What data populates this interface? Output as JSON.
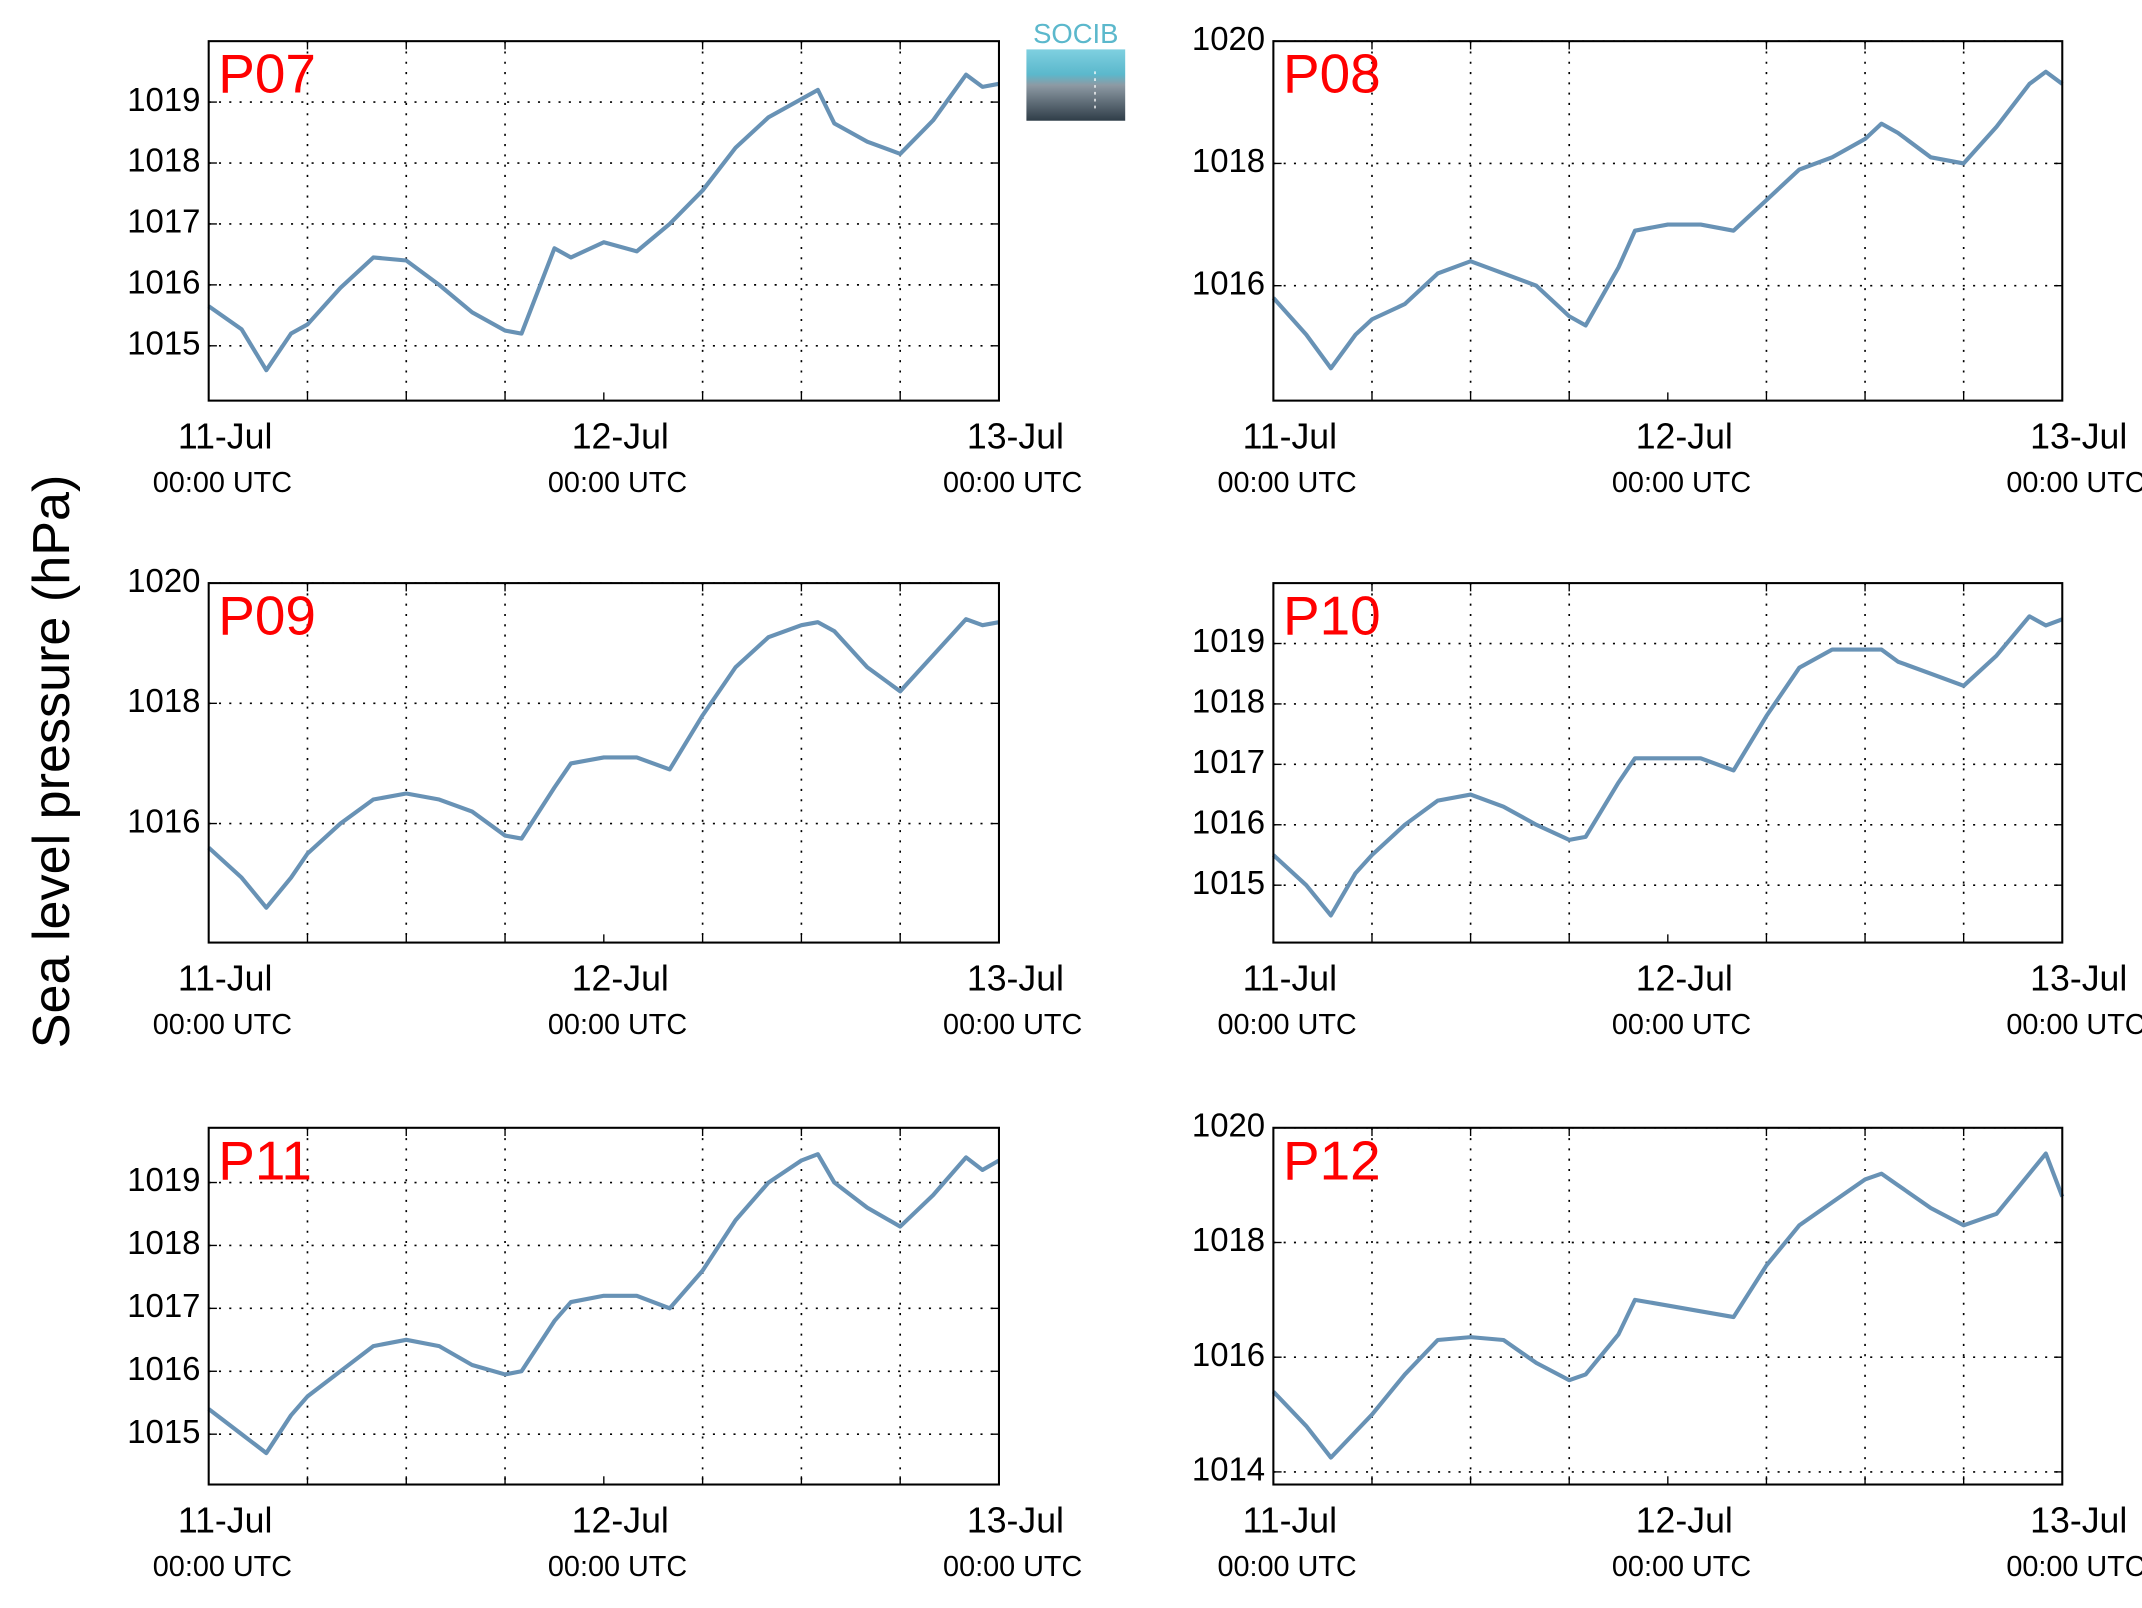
{
  "ylabel": "Sea level pressure (hPa)",
  "logo": "SOCIB",
  "chart_data": [
    {
      "type": "line",
      "title": "P07",
      "grid": true,
      "color": "#6892b5",
      "x": [
        0,
        2,
        3.5,
        5,
        6,
        8,
        10,
        12,
        14,
        16,
        18,
        19,
        21,
        22,
        24,
        26,
        28,
        30,
        32,
        34,
        36,
        37,
        38,
        40,
        42,
        44,
        46,
        47,
        48
      ],
      "values": [
        1015.65,
        1015.27,
        1014.6,
        1015.2,
        1015.35,
        1015.95,
        1016.45,
        1016.4,
        1016.0,
        1015.55,
        1015.25,
        1015.2,
        1016.6,
        1016.45,
        1016.7,
        1016.55,
        1017.0,
        1017.55,
        1018.25,
        1018.75,
        1019.05,
        1019.2,
        1018.65,
        1018.35,
        1018.15,
        1018.7,
        1019.45,
        1019.25,
        1019.3
      ],
      "xlim": [
        0,
        48
      ],
      "xticks": [
        {
          "value": 0,
          "label": "11-Jul",
          "time": "00:00 UTC"
        },
        {
          "value": 24,
          "label": "12-Jul",
          "time": "00:00 UTC"
        },
        {
          "value": 48,
          "label": "13-Jul",
          "time": "00:00 UTC"
        }
      ],
      "xminor": [
        6,
        12,
        18,
        30,
        36,
        42
      ],
      "ylim": [
        1014.1,
        1020
      ],
      "yticks": [
        1015,
        1016,
        1017,
        1018,
        1019
      ]
    },
    {
      "type": "line",
      "title": "P08",
      "grid": true,
      "color": "#6892b5",
      "x": [
        0,
        2,
        3.5,
        5,
        6,
        8,
        10,
        12,
        14,
        16,
        18,
        19,
        21,
        22,
        24,
        26,
        28,
        30,
        32,
        34,
        36,
        37,
        38,
        40,
        42,
        44,
        46,
        47,
        48
      ],
      "values": [
        1015.8,
        1015.2,
        1014.65,
        1015.2,
        1015.45,
        1015.7,
        1016.2,
        1016.4,
        1016.2,
        1016.0,
        1015.5,
        1015.35,
        1016.3,
        1016.9,
        1017.0,
        1017.0,
        1016.9,
        1017.4,
        1017.9,
        1018.1,
        1018.4,
        1018.65,
        1018.5,
        1018.1,
        1018.0,
        1018.6,
        1019.3,
        1019.5,
        1019.3
      ],
      "xlim": [
        0,
        48
      ],
      "xticks": [
        {
          "value": 0,
          "label": "11-Jul",
          "time": "00:00 UTC"
        },
        {
          "value": 24,
          "label": "12-Jul",
          "time": "00:00 UTC"
        },
        {
          "value": 48,
          "label": "13-Jul",
          "time": "00:00 UTC"
        }
      ],
      "xminor": [
        6,
        12,
        18,
        30,
        36,
        42
      ],
      "ylim": [
        1014.12,
        1020
      ],
      "yticks": [
        1016,
        1018,
        1020
      ]
    },
    {
      "type": "line",
      "title": "P09",
      "grid": true,
      "color": "#6892b5",
      "x": [
        0,
        2,
        3.5,
        5,
        6,
        8,
        10,
        12,
        14,
        16,
        18,
        19,
        21,
        22,
        24,
        26,
        28,
        30,
        32,
        34,
        36,
        37,
        38,
        40,
        42,
        44,
        46,
        47,
        48
      ],
      "values": [
        1015.6,
        1015.1,
        1014.6,
        1015.1,
        1015.5,
        1016.0,
        1016.4,
        1016.5,
        1016.4,
        1016.2,
        1015.8,
        1015.75,
        1016.6,
        1017.0,
        1017.1,
        1017.1,
        1016.9,
        1017.8,
        1018.6,
        1019.1,
        1019.3,
        1019.35,
        1019.2,
        1018.6,
        1018.2,
        1018.8,
        1019.4,
        1019.3,
        1019.35
      ],
      "xlim": [
        0,
        48
      ],
      "xticks": [
        {
          "value": 0,
          "label": "11-Jul",
          "time": "00:00 UTC"
        },
        {
          "value": 24,
          "label": "12-Jul",
          "time": "00:00 UTC"
        },
        {
          "value": 48,
          "label": "13-Jul",
          "time": "00:00 UTC"
        }
      ],
      "xminor": [
        6,
        12,
        18,
        30,
        36,
        42
      ],
      "ylim": [
        1014.02,
        1020
      ],
      "yticks": [
        1016,
        1018,
        1020
      ]
    },
    {
      "type": "line",
      "title": "P10",
      "grid": true,
      "color": "#6892b5",
      "x": [
        0,
        2,
        3.5,
        5,
        6,
        8,
        10,
        12,
        14,
        16,
        18,
        19,
        21,
        22,
        24,
        26,
        28,
        30,
        32,
        34,
        36,
        37,
        38,
        40,
        42,
        44,
        46,
        47,
        48
      ],
      "values": [
        1015.5,
        1015.0,
        1014.5,
        1015.2,
        1015.5,
        1016.0,
        1016.4,
        1016.5,
        1016.3,
        1016.0,
        1015.75,
        1015.8,
        1016.7,
        1017.1,
        1017.1,
        1017.1,
        1016.9,
        1017.8,
        1018.6,
        1018.9,
        1018.9,
        1018.9,
        1018.7,
        1018.5,
        1018.3,
        1018.8,
        1019.45,
        1019.3,
        1019.4
      ],
      "xlim": [
        0,
        48
      ],
      "xticks": [
        {
          "value": 0,
          "label": "11-Jul",
          "time": "00:00 UTC"
        },
        {
          "value": 24,
          "label": "12-Jul",
          "time": "00:00 UTC"
        },
        {
          "value": 48,
          "label": "13-Jul",
          "time": "00:00 UTC"
        }
      ],
      "xminor": [
        6,
        12,
        18,
        30,
        36,
        42
      ],
      "ylim": [
        1014.05,
        1020
      ],
      "yticks": [
        1015,
        1016,
        1017,
        1018,
        1019
      ]
    },
    {
      "type": "line",
      "title": "P11",
      "grid": true,
      "color": "#6892b5",
      "x": [
        0,
        2,
        3.5,
        5,
        6,
        8,
        10,
        12,
        14,
        16,
        18,
        19,
        21,
        22,
        24,
        26,
        28,
        30,
        32,
        34,
        36,
        37,
        38,
        40,
        42,
        44,
        46,
        47,
        48
      ],
      "values": [
        1015.4,
        1015.0,
        1014.7,
        1015.3,
        1015.6,
        1016.0,
        1016.4,
        1016.5,
        1016.4,
        1016.1,
        1015.95,
        1016.0,
        1016.8,
        1017.1,
        1017.2,
        1017.2,
        1017.0,
        1017.6,
        1018.4,
        1019.0,
        1019.35,
        1019.45,
        1019.0,
        1018.6,
        1018.3,
        1018.8,
        1019.4,
        1019.2,
        1019.35
      ],
      "xlim": [
        0,
        48
      ],
      "xticks": [
        {
          "value": 0,
          "label": "11-Jul",
          "time": "00:00 UTC"
        },
        {
          "value": 24,
          "label": "12-Jul",
          "time": "00:00 UTC"
        },
        {
          "value": 48,
          "label": "13-Jul",
          "time": "00:00 UTC"
        }
      ],
      "xminor": [
        6,
        12,
        18,
        30,
        36,
        42
      ],
      "ylim": [
        1014.2,
        1019.87
      ],
      "yticks": [
        1015,
        1016,
        1017,
        1018,
        1019
      ]
    },
    {
      "type": "line",
      "title": "P12",
      "grid": true,
      "color": "#6892b5",
      "x": [
        0,
        2,
        3.5,
        5,
        6,
        8,
        10,
        12,
        14,
        16,
        18,
        19,
        21,
        22,
        24,
        26,
        28,
        30,
        32,
        34,
        36,
        37,
        38,
        40,
        42,
        44,
        46,
        47,
        48
      ],
      "values": [
        1015.4,
        1014.8,
        1014.25,
        1014.7,
        1015.0,
        1015.7,
        1016.3,
        1016.35,
        1016.3,
        1015.9,
        1015.6,
        1015.7,
        1016.4,
        1017.0,
        1016.9,
        1016.8,
        1016.7,
        1017.6,
        1018.3,
        1018.7,
        1019.1,
        1019.2,
        1019.0,
        1018.6,
        1018.3,
        1018.5,
        1019.2,
        1019.55,
        1018.8
      ],
      "xlim": [
        0,
        48
      ],
      "xticks": [
        {
          "value": 0,
          "label": "11-Jul",
          "time": "00:00 UTC"
        },
        {
          "value": 24,
          "label": "12-Jul",
          "time": "00:00 UTC"
        },
        {
          "value": 48,
          "label": "13-Jul",
          "time": "00:00 UTC"
        }
      ],
      "xminor": [
        6,
        12,
        18,
        30,
        36,
        42
      ],
      "ylim": [
        1013.78,
        1020
      ],
      "yticks": [
        1014,
        1016,
        1018,
        1020
      ]
    }
  ]
}
